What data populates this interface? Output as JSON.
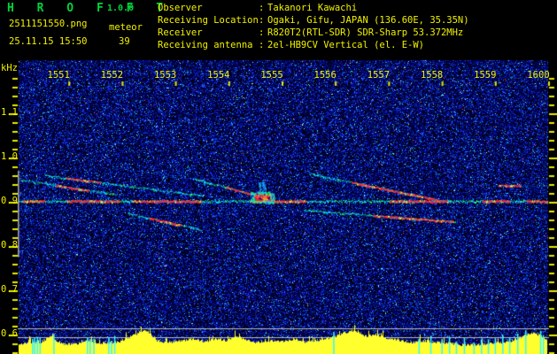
{
  "header": {
    "app_name": "H R O F F T",
    "version": "1.0.0",
    "file_name": "2511151550.png",
    "mode_label": "meteor",
    "echo_count": "39",
    "datetime": "25.11.15 15:50",
    "separator": ":",
    "info": [
      {
        "label": "Observer",
        "value": "Takanori Kawachi"
      },
      {
        "label": "Receiving Location",
        "value": "Ogaki, Gifu, JAPAN (136.60E, 35.35N)"
      },
      {
        "label": "Receiver",
        "value": "R820T2(RTL-SDR) SDR-Sharp 53.372MHz"
      },
      {
        "label": "Receiving antenna",
        "value": "2el-HB9CV Vertical (el. E-W)"
      }
    ]
  },
  "colors": {
    "text_yellow": "#f2f200",
    "text_green": "#00d23c",
    "tick_yellow": "#e8e800",
    "trail_cyan": "#00e2ff",
    "trail_green": "#22ff66",
    "trail_red": "#ff2535",
    "trail_yellow": "#ffee40",
    "strength_yellow": "#ffff2e",
    "marker_cyan": "#3cf6ff",
    "threshold_gray": "#b8bcc2",
    "window_gray": "#9aa0a8",
    "background": "#000000"
  },
  "chart_data": {
    "type": "heatmap",
    "description": "HROFFT 10-minute radio meteor echo spectrogram with signal-strength strip",
    "x_axis": {
      "tick_labels": [
        "1551",
        "1552",
        "1553",
        "1554",
        "1555",
        "1556",
        "1557",
        "1558",
        "1559",
        "1600"
      ],
      "start": "15:50",
      "end": "16:00",
      "minutes_span": 10
    },
    "y_axis": {
      "unit": "kHz",
      "tick_labels": [
        "1.1",
        "1.0",
        "0.9",
        "0.8",
        "0.7",
        "0.6"
      ],
      "khz_top": 1.22,
      "khz_bottom": 0.556,
      "minor_tick_khz": 0.02
    },
    "carrier_khz": 0.902,
    "carrier_red_segments_t": [
      [
        0.13,
        0.53
      ],
      [
        0.95,
        1.94
      ],
      [
        2.19,
        3.47
      ],
      [
        4.4,
        5.43
      ],
      [
        7.01,
        8.09
      ],
      [
        8.75,
        9.25
      ],
      [
        9.58,
        9.97
      ]
    ],
    "underline_khz": 0.882,
    "detection_window_khz": [
      0.97,
      0.775
    ],
    "threshold_lines_khz": [
      0.614,
      0.594
    ],
    "trails": [
      {
        "t1": 0.1,
        "f1": 0.95,
        "t2": 1.9,
        "f2": 0.916,
        "red": [
          0.75,
          1.35
        ],
        "faint": false
      },
      {
        "t1": 0.55,
        "f1": 0.96,
        "t2": 3.5,
        "f2": 0.914,
        "red": [
          0.95,
          1.6
        ],
        "faint": false
      },
      {
        "t1": 2.15,
        "f1": 0.97,
        "t2": 3.5,
        "f2": 0.957,
        "red": null,
        "faint": true
      },
      {
        "t1": 2.1,
        "f1": 0.874,
        "t2": 3.45,
        "f2": 0.838,
        "red": [
          2.5,
          3.1
        ],
        "faint": false
      },
      {
        "t1": 3.35,
        "f1": 0.952,
        "t2": 4.62,
        "f2": 0.911,
        "red": [
          3.95,
          4.62
        ],
        "faint": false
      },
      {
        "t1": 5.5,
        "f1": 0.964,
        "t2": 8.1,
        "f2": 0.9,
        "red": [
          6.3,
          7.9
        ],
        "faint": false
      },
      {
        "t1": 5.4,
        "f1": 0.882,
        "t2": 8.25,
        "f2": 0.855,
        "red": [
          6.7,
          8.2
        ],
        "faint": false
      },
      {
        "t1": 8.0,
        "f1": 0.938,
        "t2": 10.05,
        "f2": 0.937,
        "red": [
          9.05,
          9.45
        ],
        "faint": true
      }
    ],
    "echo_blob": {
      "t": 4.62,
      "f": 0.91
    },
    "strength_profile": [
      [
        0.0,
        9
      ],
      [
        0.15,
        12
      ],
      [
        0.3,
        13
      ],
      [
        0.45,
        13
      ],
      [
        0.6,
        18
      ],
      [
        0.67,
        22
      ],
      [
        0.75,
        13
      ],
      [
        0.95,
        11
      ],
      [
        1.15,
        12
      ],
      [
        1.3,
        15
      ],
      [
        1.5,
        12
      ],
      [
        1.8,
        13
      ],
      [
        2.0,
        15
      ],
      [
        2.2,
        21
      ],
      [
        2.38,
        27
      ],
      [
        2.5,
        24
      ],
      [
        2.65,
        15
      ],
      [
        2.85,
        13
      ],
      [
        3.1,
        15
      ],
      [
        3.3,
        17
      ],
      [
        3.55,
        14
      ],
      [
        3.75,
        17
      ],
      [
        3.95,
        15
      ],
      [
        4.1,
        20
      ],
      [
        4.3,
        17
      ],
      [
        4.5,
        13
      ],
      [
        4.75,
        15
      ],
      [
        5.0,
        14
      ],
      [
        5.2,
        17
      ],
      [
        5.45,
        13
      ],
      [
        5.7,
        16
      ],
      [
        5.95,
        19
      ],
      [
        6.15,
        24
      ],
      [
        6.35,
        27
      ],
      [
        6.55,
        20
      ],
      [
        6.75,
        22
      ],
      [
        6.95,
        18
      ],
      [
        7.2,
        15
      ],
      [
        7.45,
        13
      ],
      [
        7.65,
        15
      ],
      [
        7.9,
        13
      ],
      [
        8.15,
        12
      ],
      [
        8.4,
        10
      ],
      [
        8.7,
        11
      ],
      [
        9.0,
        12
      ],
      [
        9.3,
        15
      ],
      [
        9.5,
        20
      ],
      [
        9.7,
        24
      ],
      [
        9.85,
        20
      ],
      [
        10.0,
        15
      ]
    ],
    "echo_markers_t": [
      0.3,
      0.34,
      0.39,
      0.44,
      0.7,
      1.33,
      1.38,
      1.45,
      1.73,
      1.78,
      1.84,
      5.95,
      7.55,
      7.77,
      7.98,
      8.12,
      8.25,
      8.4,
      8.58,
      8.72,
      8.85,
      8.98,
      9.12,
      9.25,
      9.4,
      9.55,
      9.83,
      9.88
    ],
    "noise_seed": 1337
  }
}
